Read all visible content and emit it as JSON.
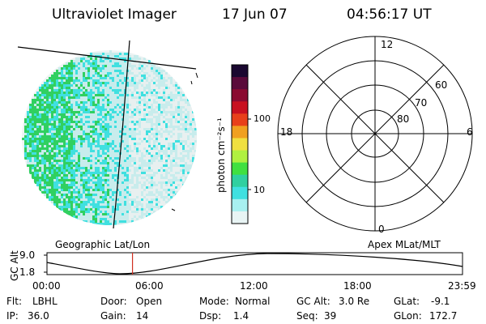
{
  "header": {
    "instrument": "Ultraviolet Imager",
    "date": "17 Jun 07",
    "time": "04:56:17 UT"
  },
  "colorbar": {
    "unit_label": "photon cm⁻²s⁻¹",
    "ticks": [
      "100",
      "10"
    ],
    "colors": [
      "#1a0830",
      "#5a0a3a",
      "#8a0a30",
      "#c81020",
      "#e8401a",
      "#f0a020",
      "#f0e040",
      "#b0f040",
      "#40e040",
      "#30d0a0",
      "#40e0e0",
      "#a8f0f0",
      "#e8f4f4"
    ]
  },
  "image_disk": {
    "title": "Geographic Lat/Lon",
    "colors": {
      "bright": "#30d060",
      "mid": "#40e0e0",
      "dim": "#c8ecec",
      "faint": "#e8f0f0"
    }
  },
  "polar_plot": {
    "title": "Apex MLat/MLT",
    "mlt_labels": {
      "top": "12",
      "left": "18",
      "right": "6",
      "bottom": "0"
    },
    "lat_labels": [
      "60",
      "70",
      "80"
    ]
  },
  "timeline": {
    "ylabel": "GC Alt",
    "y_ticks": [
      "9.0",
      "1.8"
    ],
    "x_ticks": [
      "00:00",
      "06:00",
      "12:00",
      "18:00",
      "23:59"
    ],
    "current_time_fraction": 0.2058,
    "marker_color": "#d03020"
  },
  "status": {
    "row1": [
      {
        "label": "Flt:",
        "value": "LBHL"
      },
      {
        "label": "Door:",
        "value": "Open"
      },
      {
        "label": "Mode:",
        "value": "Normal"
      },
      {
        "label": "GC Alt:",
        "value": "3.0 Re"
      },
      {
        "label": "GLat:",
        "value": "-9.1"
      }
    ],
    "row2": [
      {
        "label": "IP:",
        "value": "36.0"
      },
      {
        "label": "Gain:",
        "value": "14"
      },
      {
        "label": "Dsp:",
        "value": "1.4"
      },
      {
        "label": "Seq:",
        "value": "39"
      },
      {
        "label": "GLon:",
        "value": "172.7"
      }
    ]
  }
}
